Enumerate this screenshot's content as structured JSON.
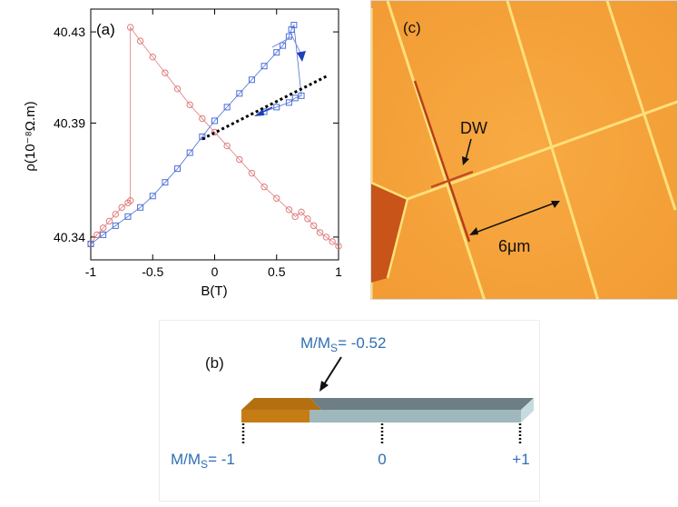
{
  "panel_a": {
    "label": "(a)",
    "chart_data": {
      "type": "scatter",
      "xlabel": "B(T)",
      "ylabel": "ρ(10⁻⁸Ω.m)",
      "xlim": [
        -1,
        1
      ],
      "ylim": [
        40.33,
        40.44
      ],
      "xticks": [
        -1,
        -0.5,
        0,
        0.5,
        1
      ],
      "xtick_labels": [
        "-1",
        "-0.5",
        "0",
        "0.5",
        "1"
      ],
      "yticks": [
        40.34,
        40.39,
        40.43
      ],
      "ytick_labels": [
        "40.34",
        "40.39",
        "40.43"
      ],
      "grid": false,
      "series": [
        {
          "marker": "circle",
          "color": "#e07a7a",
          "x": [
            -1.0,
            -0.95,
            -0.9,
            -0.85,
            -0.8,
            -0.75,
            -0.7,
            -0.68,
            -0.68,
            -0.6,
            -0.5,
            -0.4,
            -0.3,
            -0.2,
            -0.1,
            0.0,
            0.1,
            0.2,
            0.3,
            0.4,
            0.5,
            0.6,
            0.65,
            0.7,
            0.75,
            0.8,
            0.85,
            0.9,
            0.95,
            1.0
          ],
          "y": [
            40.337,
            40.341,
            40.344,
            40.347,
            40.35,
            40.353,
            40.355,
            40.356,
            40.432,
            40.426,
            40.419,
            40.412,
            40.405,
            40.398,
            40.392,
            40.386,
            40.38,
            40.374,
            40.368,
            40.362,
            40.357,
            40.352,
            40.349,
            40.351,
            40.348,
            40.345,
            40.342,
            40.34,
            40.338,
            40.336
          ]
        },
        {
          "marker": "square",
          "color": "#4a6fd6",
          "x": [
            -1.0,
            -0.9,
            -0.8,
            -0.7,
            -0.6,
            -0.5,
            -0.4,
            -0.3,
            -0.2,
            -0.1,
            0.0,
            0.1,
            0.2,
            0.3,
            0.4,
            0.5,
            0.55,
            0.6,
            0.62,
            0.64,
            0.7,
            0.65,
            0.6,
            0.5,
            0.4
          ],
          "y": [
            40.337,
            40.341,
            40.345,
            40.349,
            40.353,
            40.358,
            40.364,
            40.37,
            40.377,
            40.384,
            40.391,
            40.397,
            40.403,
            40.409,
            40.415,
            40.421,
            40.424,
            40.428,
            40.431,
            40.433,
            40.402,
            40.401,
            40.399,
            40.397,
            40.395
          ]
        }
      ],
      "linear_fit": {
        "style": "dashed",
        "color": "#000000",
        "x": [
          -0.1,
          0.92
        ],
        "y": [
          40.383,
          40.411
        ]
      }
    }
  },
  "panel_b": {
    "label": "(b)",
    "top_annotation": "M/M",
    "top_annotation_sub": "S",
    "top_annotation_value": "= -0.52",
    "ticks": [
      "M/M",
      "0",
      "+1"
    ],
    "tick_left_sub": "S",
    "tick_left_value": "= -1",
    "domain_fraction_down": 0.24,
    "colors": {
      "bar_orange": "#c67c14",
      "bar_grey": "#9fb8bc",
      "label_blue": "#2f6fb3"
    }
  },
  "panel_c": {
    "label": "(c)",
    "dw_label": "DW",
    "width_label": "6μm",
    "colors": {
      "background": "#f7a23a",
      "lines": "#ffe27a",
      "dark_wall": "#b3401c"
    }
  }
}
